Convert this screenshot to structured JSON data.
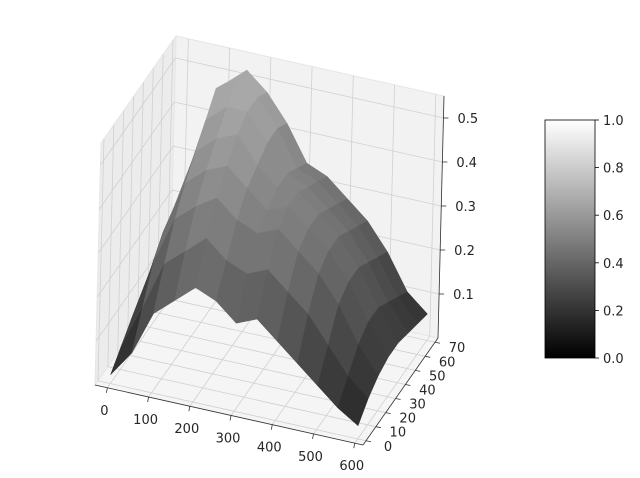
{
  "chart_data": {
    "type": "surface3d",
    "title": "",
    "xlabel": "",
    "ylabel": "",
    "zlabel": "",
    "colormap": "gray",
    "x_ticks": [
      0,
      100,
      200,
      300,
      400,
      500,
      600
    ],
    "y_ticks": [
      0,
      10,
      20,
      30,
      40,
      50,
      60,
      70
    ],
    "z_ticks": [
      0.1,
      0.2,
      0.3,
      0.4,
      0.5
    ],
    "xlim": [
      -30,
      620
    ],
    "ylim": [
      -3,
      73
    ],
    "zlim": [
      0.0,
      0.55
    ],
    "colorbar": {
      "ticks": [
        0.0,
        0.2,
        0.4,
        0.6,
        0.8,
        1.0
      ],
      "range": [
        0.0,
        1.0
      ],
      "labels": [
        "0.0",
        "0.2",
        "0.4",
        "0.6",
        "0.8",
        "1.0"
      ]
    },
    "grid": true,
    "pane_color": "#f2f2f2",
    "grid_color": "#d0d0d0",
    "surface_x": [
      0,
      50,
      100,
      150,
      200,
      250,
      300,
      350,
      400,
      450,
      500,
      550,
      600
    ],
    "surface_y": [
      0,
      10,
      20,
      30,
      40,
      50,
      60,
      70
    ],
    "surface_z": [
      [
        0.02,
        0.08,
        0.18,
        0.22,
        0.26,
        0.24,
        0.2,
        0.22,
        0.18,
        0.14,
        0.1,
        0.06,
        0.03
      ],
      [
        0.05,
        0.15,
        0.26,
        0.3,
        0.34,
        0.3,
        0.28,
        0.3,
        0.26,
        0.22,
        0.16,
        0.1,
        0.06
      ],
      [
        0.08,
        0.22,
        0.33,
        0.37,
        0.4,
        0.36,
        0.34,
        0.36,
        0.32,
        0.28,
        0.22,
        0.14,
        0.08
      ],
      [
        0.1,
        0.26,
        0.38,
        0.42,
        0.44,
        0.4,
        0.36,
        0.38,
        0.34,
        0.3,
        0.24,
        0.16,
        0.09
      ],
      [
        0.1,
        0.28,
        0.42,
        0.46,
        0.48,
        0.42,
        0.38,
        0.38,
        0.34,
        0.3,
        0.24,
        0.16,
        0.09
      ],
      [
        0.09,
        0.3,
        0.46,
        0.5,
        0.5,
        0.44,
        0.38,
        0.36,
        0.32,
        0.28,
        0.22,
        0.14,
        0.08
      ],
      [
        0.08,
        0.32,
        0.5,
        0.53,
        0.5,
        0.44,
        0.36,
        0.34,
        0.3,
        0.26,
        0.2,
        0.12,
        0.07
      ],
      [
        0.06,
        0.3,
        0.48,
        0.52,
        0.48,
        0.42,
        0.34,
        0.32,
        0.28,
        0.24,
        0.18,
        0.1,
        0.06
      ]
    ]
  }
}
